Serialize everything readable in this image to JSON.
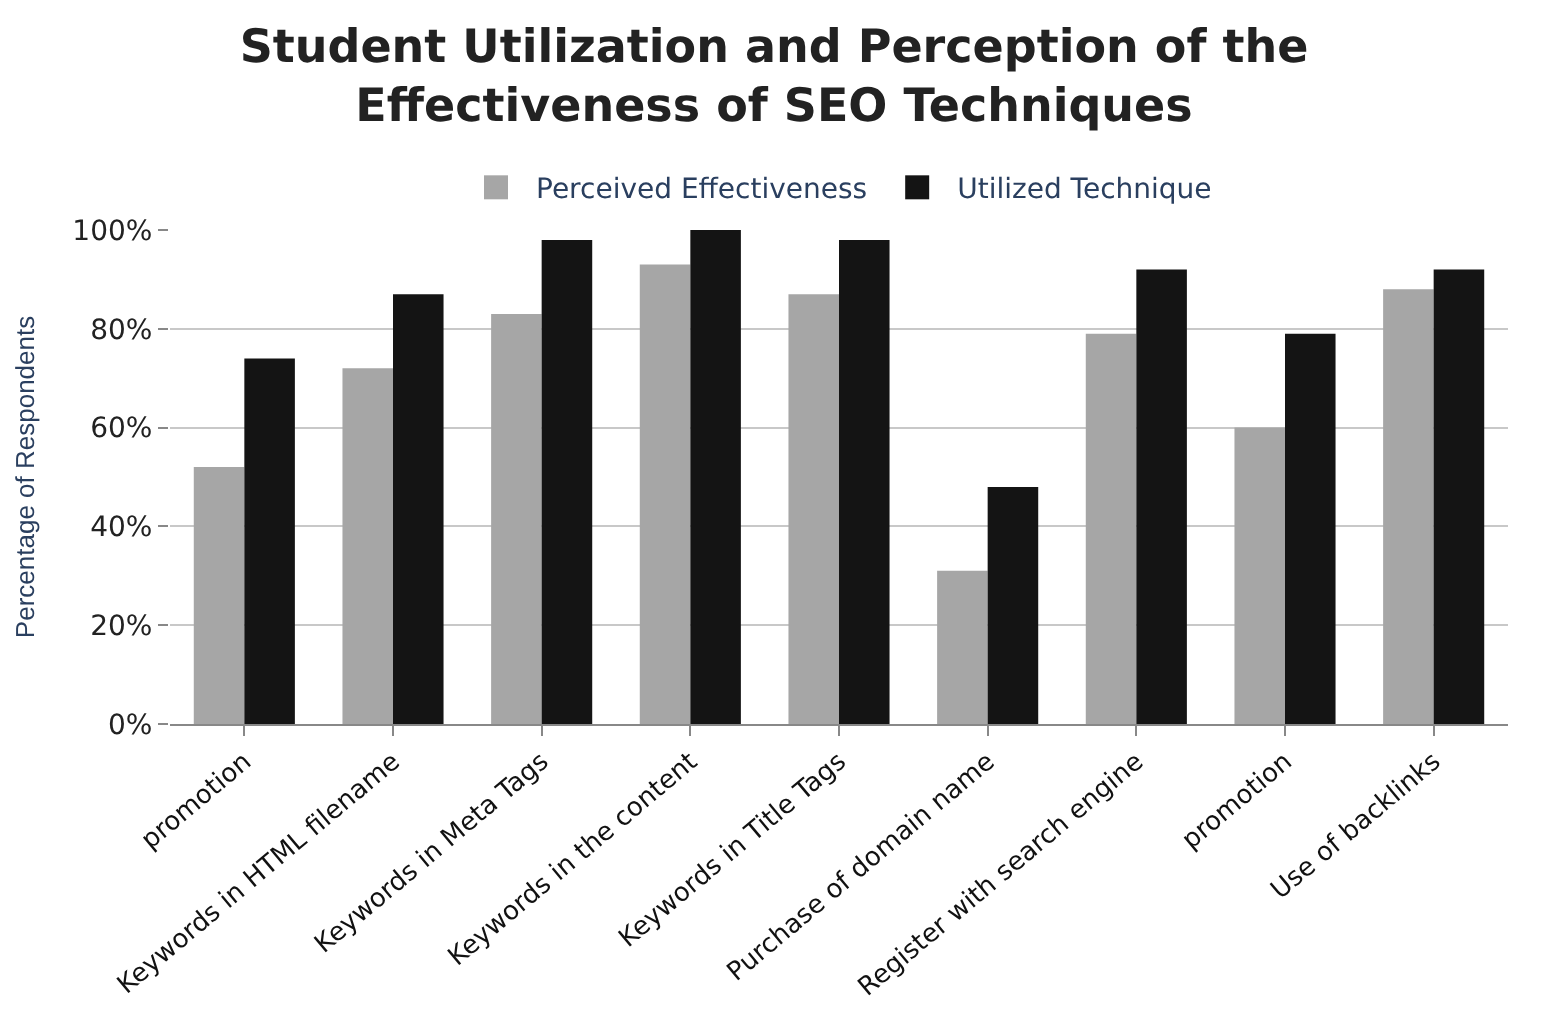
{
  "chart_data": {
    "type": "bar",
    "title": "Student Utilization and Perception of the\nEffectiveness of SEO Techniques",
    "ylabel": "Percentage of Respondents",
    "categories": [
      "promotion",
      "Keywords in HTML filename",
      "Keywords in Meta Tags",
      "Keywords in the content",
      "Keywords in Title Tags",
      "Purchase of domain name",
      "Register with search engine",
      "promotion",
      "Use of backlinks"
    ],
    "series": [
      {
        "name": "Perceived Effectiveness",
        "color": "#a6a6a6",
        "values": [
          52,
          72,
          83,
          93,
          87,
          31,
          79,
          60,
          88
        ]
      },
      {
        "name": "Utilized Technique",
        "color": "#141414",
        "values": [
          74,
          87,
          98,
          100,
          98,
          48,
          92,
          79,
          92
        ]
      }
    ],
    "ylim": [
      0,
      100
    ],
    "yticks": [
      {
        "value": 0,
        "label": "0%"
      },
      {
        "value": 20,
        "label": "20%"
      },
      {
        "value": 40,
        "label": "40%"
      },
      {
        "value": 60,
        "label": "60%"
      },
      {
        "value": 80,
        "label": "80%"
      },
      {
        "value": 100,
        "label": "100%"
      }
    ],
    "grid": "y",
    "legend": "top"
  }
}
